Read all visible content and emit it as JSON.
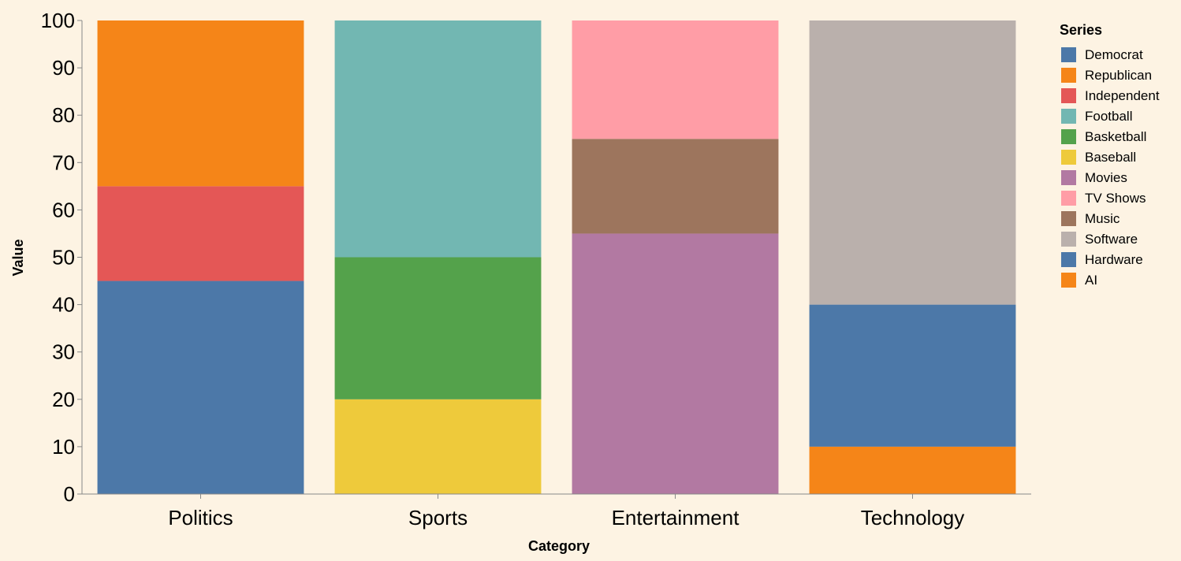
{
  "chart_data": {
    "type": "bar",
    "stacked": true,
    "categories": [
      "Politics",
      "Sports",
      "Entertainment",
      "Technology"
    ],
    "xlabel": "Category",
    "ylabel": "Value",
    "ylim": [
      0,
      100
    ],
    "yticks": [
      0,
      10,
      20,
      30,
      40,
      50,
      60,
      70,
      80,
      90,
      100
    ],
    "grid": false,
    "legend": {
      "title": "Series",
      "position": "right"
    },
    "background": "#fdf3e3",
    "series": [
      {
        "name": "Democrat",
        "color": "#4c78a8",
        "values": [
          45,
          0,
          0,
          0
        ]
      },
      {
        "name": "Republican",
        "color": "#f58518",
        "values": [
          35,
          0,
          0,
          0
        ]
      },
      {
        "name": "Independent",
        "color": "#e45756",
        "values": [
          20,
          0,
          0,
          0
        ]
      },
      {
        "name": "Football",
        "color": "#72b7b2",
        "values": [
          0,
          50,
          0,
          0
        ]
      },
      {
        "name": "Basketball",
        "color": "#54a24b",
        "values": [
          0,
          30,
          0,
          0
        ]
      },
      {
        "name": "Baseball",
        "color": "#eeca3b",
        "values": [
          0,
          20,
          0,
          0
        ]
      },
      {
        "name": "Movies",
        "color": "#b279a2",
        "values": [
          0,
          0,
          55,
          0
        ]
      },
      {
        "name": "TV Shows",
        "color": "#ff9da6",
        "values": [
          0,
          0,
          25,
          0
        ]
      },
      {
        "name": "Music",
        "color": "#9d755d",
        "values": [
          0,
          0,
          20,
          0
        ]
      },
      {
        "name": "Software",
        "color": "#bab0ac",
        "values": [
          0,
          0,
          0,
          60
        ]
      },
      {
        "name": "Hardware",
        "color": "#4c78a8",
        "values": [
          0,
          0,
          0,
          30
        ]
      },
      {
        "name": "AI",
        "color": "#f58518",
        "values": [
          0,
          0,
          0,
          10
        ]
      }
    ],
    "stack_order": [
      [
        "Democrat",
        "Independent",
        "Republican"
      ],
      [
        "Baseball",
        "Basketball",
        "Football"
      ],
      [
        "Movies",
        "Music",
        "TV Shows"
      ],
      [
        "AI",
        "Hardware",
        "Software"
      ]
    ]
  }
}
